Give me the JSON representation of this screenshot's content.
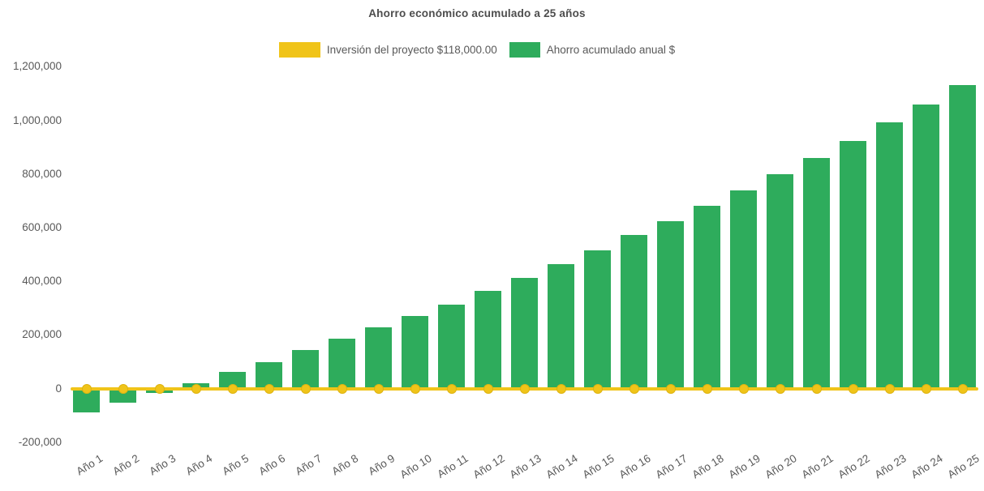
{
  "title": "Ahorro económico acumulado a 25 años",
  "colors": {
    "bar": "#2eac5c",
    "line": "#f0c419",
    "text": "#595959",
    "title": "#4d4d4d",
    "bg": "#ffffff"
  },
  "chart_data": {
    "type": "bar",
    "title": "Ahorro económico acumulado a 25 años",
    "xlabel": "",
    "ylabel": "",
    "grid": false,
    "legend_position": "top",
    "ylim": [
      -200000,
      1200000
    ],
    "ytick_labels": [
      "1,200,000",
      "1,000,000",
      "800,000",
      "600,000",
      "400,000",
      "200,000",
      "0",
      "-200,000"
    ],
    "ytick_values": [
      1200000,
      1000000,
      800000,
      600000,
      400000,
      200000,
      0,
      -200000
    ],
    "categories": [
      "Año 1",
      "Año 2",
      "Año 3",
      "Año 4",
      "Año 5",
      "Año 6",
      "Año 7",
      "Año 8",
      "Año 9",
      "Año 10",
      "Año 11",
      "Año 12",
      "Año 13",
      "Año 14",
      "Año 15",
      "Año 16",
      "Año 17",
      "Año 18",
      "Año 19",
      "Año 20",
      "Año 21",
      "Año 22",
      "Año 23",
      "Año 24",
      "Año 25"
    ],
    "series": [
      {
        "name": "Inversión del proyecto $118,000.00",
        "type": "line",
        "color": "#f0c419",
        "values": [
          0,
          0,
          0,
          0,
          0,
          0,
          0,
          0,
          0,
          0,
          0,
          0,
          0,
          0,
          0,
          0,
          0,
          0,
          0,
          0,
          0,
          0,
          0,
          0,
          0
        ]
      },
      {
        "name": "Ahorro acumulado anual $",
        "type": "bar",
        "color": "#2eac5c",
        "values": [
          -88000,
          -54000,
          -18000,
          21000,
          61000,
          99000,
          143000,
          185000,
          229000,
          271000,
          314000,
          365000,
          413000,
          463000,
          516000,
          571000,
          623000,
          681000,
          739000,
          798000,
          859000,
          923000,
          992000,
          1059000,
          1130000
        ]
      }
    ]
  }
}
